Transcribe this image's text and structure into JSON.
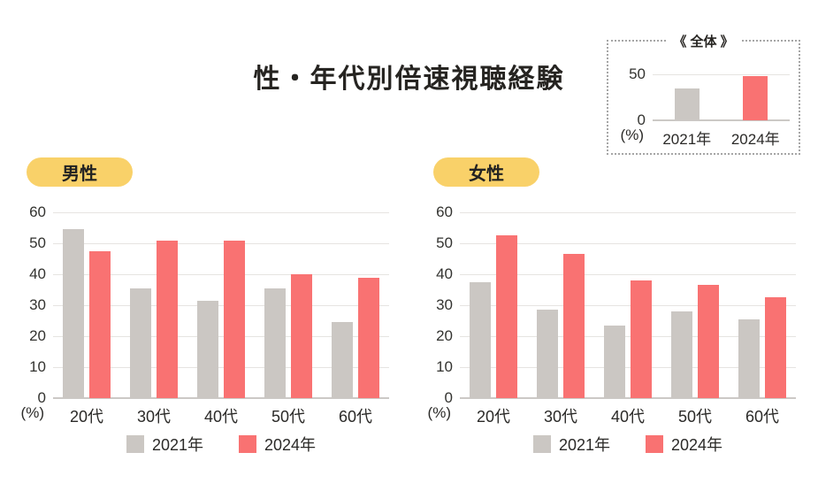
{
  "title": "性・年代別倍速視聴経験",
  "colors": {
    "bar_2021": "#cbc7c3",
    "bar_2024": "#f97272",
    "pill_bg": "#f9d169",
    "gridline": "#e6e4e1",
    "zero_line": "#ccc9c6",
    "inset_border": "#a6a6a6",
    "text": "#2b2a28"
  },
  "legend_items": [
    {
      "label": "2021年",
      "color_key": "bar_2021"
    },
    {
      "label": "2024年",
      "color_key": "bar_2024"
    }
  ],
  "chart_data": [
    {
      "id": "overall",
      "type": "bar",
      "title": "《 全体 》",
      "unit_label": "(%)",
      "categories": [
        "2021年",
        "2024年"
      ],
      "values": [
        34.5,
        47.5
      ],
      "bar_color_keys": [
        "bar_2021",
        "bar_2024"
      ],
      "y_ticks": [
        0,
        50
      ],
      "ylim": [
        0,
        60
      ],
      "grid": true,
      "legend_position": "none"
    },
    {
      "id": "male",
      "type": "bar",
      "title": "男性",
      "unit_label": "(%)",
      "categories": [
        "20代",
        "30代",
        "40代",
        "50代",
        "60代"
      ],
      "series": [
        {
          "name": "2021年",
          "color_key": "bar_2021",
          "values": [
            54.5,
            35.5,
            31.5,
            35.5,
            24.5
          ]
        },
        {
          "name": "2024年",
          "color_key": "bar_2024",
          "values": [
            47.5,
            51.0,
            51.0,
            40.0,
            39.0
          ]
        }
      ],
      "y_ticks": [
        0,
        10,
        20,
        30,
        40,
        50,
        60
      ],
      "ylim": [
        0,
        60
      ],
      "grid": true,
      "legend_position": "bottom"
    },
    {
      "id": "female",
      "type": "bar",
      "title": "女性",
      "unit_label": "(%)",
      "categories": [
        "20代",
        "30代",
        "40代",
        "50代",
        "60代"
      ],
      "series": [
        {
          "name": "2021年",
          "color_key": "bar_2021",
          "values": [
            37.5,
            28.5,
            23.5,
            28.0,
            25.5
          ]
        },
        {
          "name": "2024年",
          "color_key": "bar_2024",
          "values": [
            52.5,
            46.5,
            38.0,
            36.5,
            32.5
          ]
        }
      ],
      "y_ticks": [
        0,
        10,
        20,
        30,
        40,
        50,
        60
      ],
      "ylim": [
        0,
        60
      ],
      "grid": true,
      "legend_position": "bottom"
    }
  ]
}
